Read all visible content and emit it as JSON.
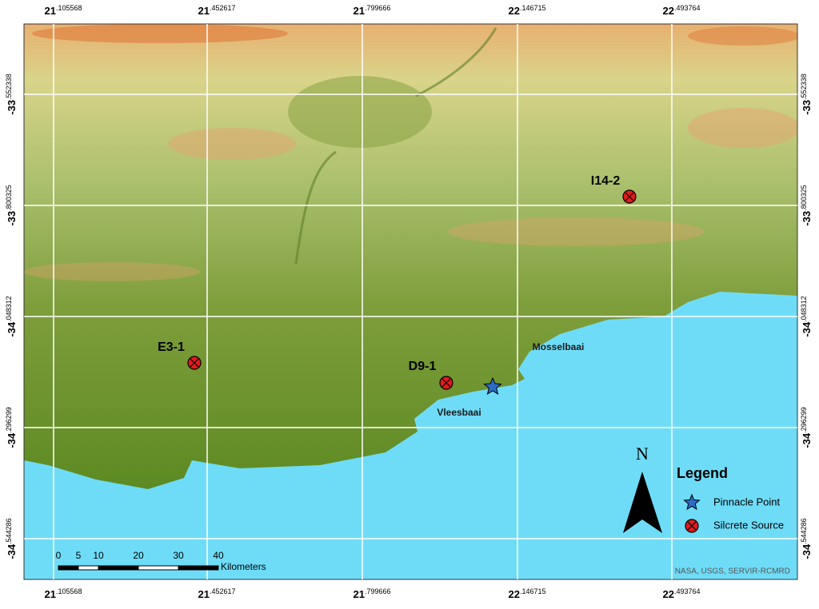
{
  "map": {
    "x_labels": [
      {
        "deg": "21",
        "dec": ".105568"
      },
      {
        "deg": "21",
        "dec": ".452617"
      },
      {
        "deg": "21",
        "dec": ".799666"
      },
      {
        "deg": "22",
        "dec": ".146715"
      },
      {
        "deg": "22",
        "dec": ".493764"
      }
    ],
    "y_labels": [
      {
        "deg": "-33",
        "dec": ".552338"
      },
      {
        "deg": "-33",
        "dec": ".800325"
      },
      {
        "deg": "-34",
        "dec": ".048312"
      },
      {
        "deg": "-34",
        "dec": ".296299"
      },
      {
        "deg": "-34",
        "dec": ".544286"
      }
    ],
    "sites": [
      "I14-2",
      "E3-1",
      "D9-1"
    ],
    "places": [
      "Mosselbaai",
      "Vleesbaai"
    ],
    "scale": {
      "ticks": [
        "0",
        "5",
        "10",
        "20",
        "30",
        "40"
      ],
      "unit": "Kilometers"
    },
    "north": "N",
    "legend": {
      "title": "Legend",
      "items": [
        "Pinnacle Point",
        "Silcrete Source"
      ]
    },
    "credit": "NASA, USGS, SERVIR-RCMRD"
  }
}
